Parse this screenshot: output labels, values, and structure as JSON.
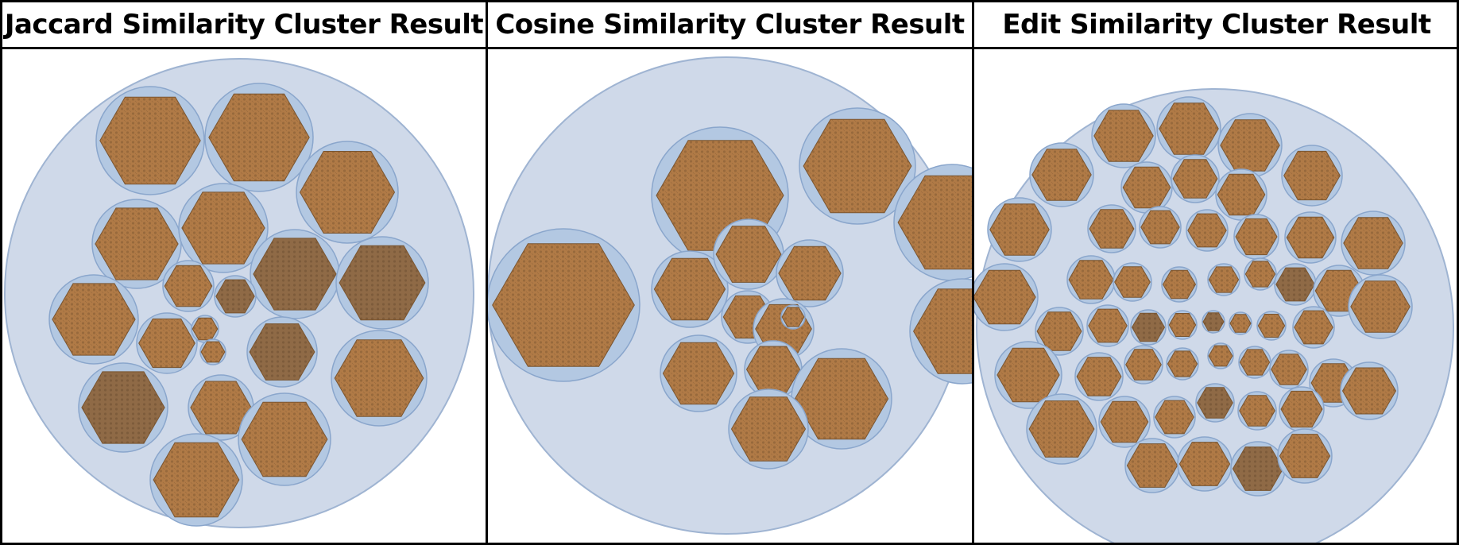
{
  "panels": [
    {
      "title": "Jaccard Similarity Cluster Result"
    },
    {
      "title": "Cosine Similarity Cluster Result"
    },
    {
      "title": "Edit Similarity Cluster Result"
    }
  ],
  "colors": {
    "outer_circle_fill": "#cfd9e9",
    "outer_circle_stroke": "#9fb4d2",
    "inner_circle_fill": "#b3c8e2",
    "inner_circle_stroke": "#8aa6cc",
    "hex_fill": "#b07a46",
    "hex_fill_dark": "#8f6a46",
    "hex_stroke": "#7a5530"
  }
}
